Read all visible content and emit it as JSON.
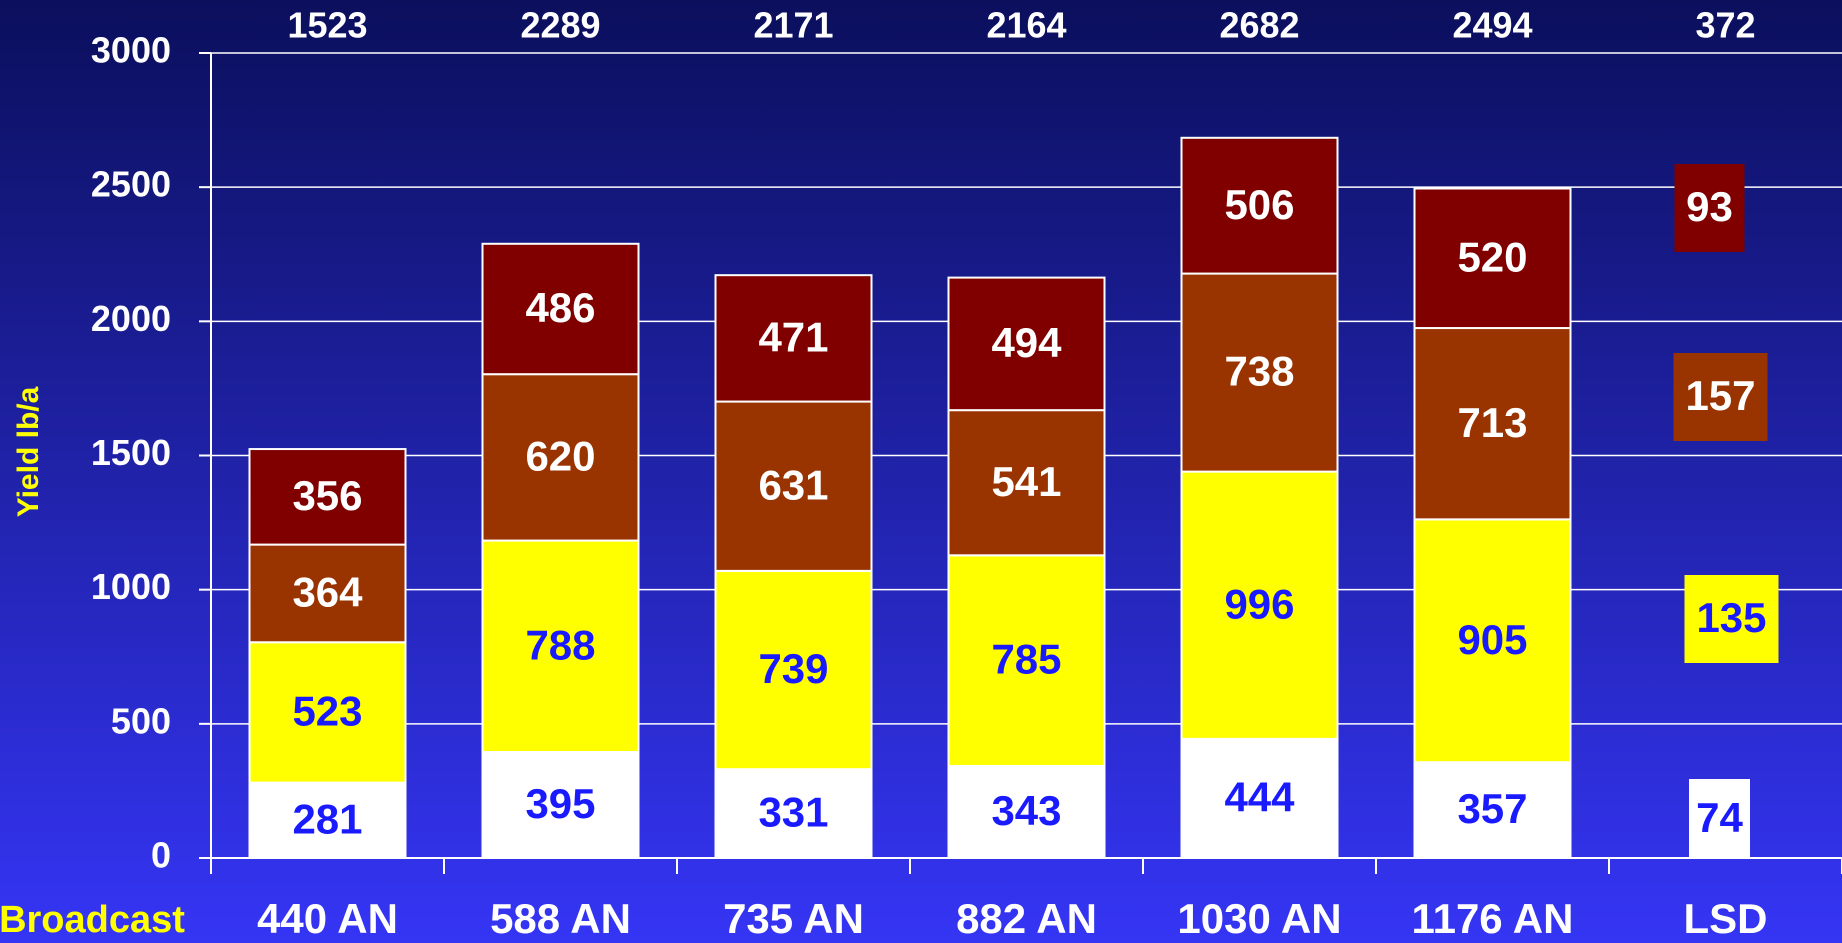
{
  "chart_data": {
    "type": "stacked_bar",
    "y_label": "Yield lb/a",
    "x_label": "Broadcast",
    "categories": [
      "440 AN",
      "588 AN",
      "735 AN",
      "882 AN",
      "1030 AN",
      "1176 AN"
    ],
    "series": [
      {
        "color": "#ffffff",
        "label_color": "#1a1aff",
        "values": [
          281,
          395,
          331,
          343,
          444,
          357
        ]
      },
      {
        "color": "#ffff00",
        "label_color": "#1a1aff",
        "values": [
          523,
          788,
          739,
          785,
          996,
          905
        ]
      },
      {
        "color": "#993300",
        "label_color": "#ffffff",
        "values": [
          364,
          620,
          631,
          541,
          738,
          713
        ]
      },
      {
        "color": "#800000",
        "label_color": "#ffffff",
        "values": [
          356,
          486,
          471,
          494,
          506,
          520
        ]
      }
    ],
    "totals": [
      1523,
      2289,
      2171,
      2164,
      2682,
      2494
    ],
    "lsd": {
      "label": "LSD",
      "values": [
        74,
        135,
        157,
        93
      ],
      "total": 372
    },
    "ylim": [
      0,
      3000
    ],
    "yticks": [
      0,
      500,
      1000,
      1500,
      2000,
      2500,
      3000
    ],
    "grid": true
  }
}
